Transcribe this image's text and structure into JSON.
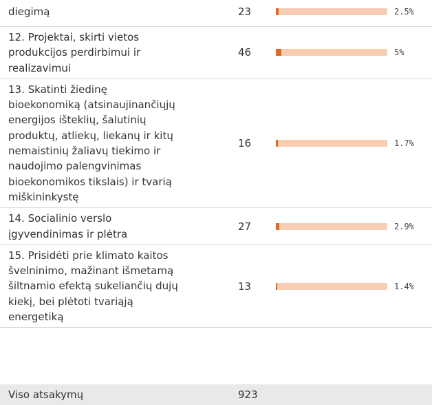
{
  "table": {
    "rows": [
      {
        "label": [
          "diegimą"
        ],
        "count": 23,
        "percent": 2.5,
        "percent_label": "2.5%"
      },
      {
        "label": [
          "12. Projektai, skirti vietos",
          "produkcijos perdirbimui ir",
          "realizavimui"
        ],
        "count": 46,
        "percent": 5,
        "percent_label": "5%"
      },
      {
        "label": [
          "13. Skatinti žiedinę",
          "bioekonomiką (atsinaujinančiųjų",
          "energijos išteklių, šalutinių",
          "produktų, atliekų, liekanų ir kitų",
          "nemaistinių žaliavų tiekimo ir",
          "naudojimo palengvinimas",
          "bioekonomikos tikslais) ir tvarią",
          "miškininkystę"
        ],
        "count": 16,
        "percent": 1.7,
        "percent_label": "1.7%"
      },
      {
        "label": [
          "14. Socialinio verslo",
          "įgyvendinimas ir plėtra"
        ],
        "count": 27,
        "percent": 2.9,
        "percent_label": "2.9%"
      },
      {
        "label": [
          "15. Prisidėti prie klimato kaitos",
          "švelninimo, mažinant išmetamą",
          "šiltnamio efektą sukeliančių dujų",
          "kiekį, bei plėtoti tvariąją",
          "energetiką"
        ],
        "count": 13,
        "percent": 1.4,
        "percent_label": "1.4%"
      }
    ],
    "total": {
      "label": "Viso atsakymų",
      "count": 923
    }
  }
}
